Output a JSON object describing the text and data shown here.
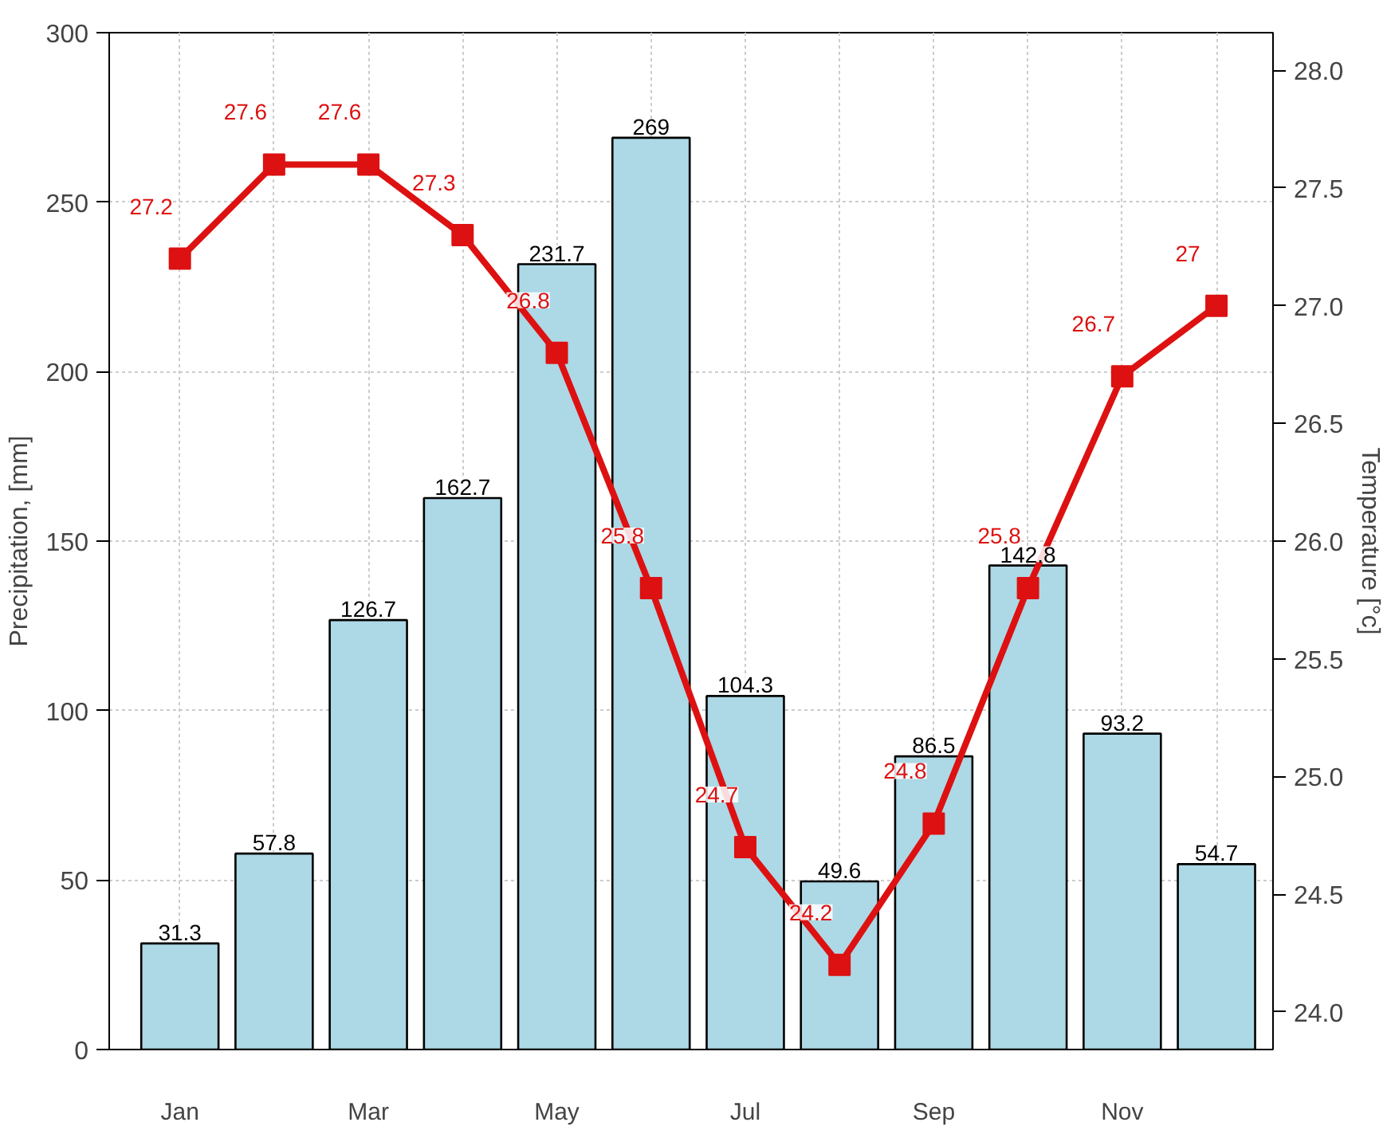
{
  "chart_data": {
    "type": "bar",
    "ylabel": "Precipitation, [mm]",
    "y2label": "Temperature [°c]",
    "categories": [
      "Jan",
      null,
      "Mar",
      null,
      "May",
      null,
      "Jul",
      null,
      "Sep",
      null,
      "Nov",
      null
    ],
    "series": [
      {
        "type": "bar",
        "color": "#add8e6",
        "values": [
          31.3,
          57.8,
          126.7,
          162.7,
          231.7,
          269,
          104.3,
          49.6,
          86.5,
          142.8,
          93.2,
          54.7
        ]
      },
      {
        "type": "line",
        "axis": "y2",
        "color": "#dd1111",
        "marker": "square",
        "line_style": "solid",
        "values": [
          27.2,
          27.6,
          27.6,
          27.3,
          26.8,
          25.8,
          24.7,
          24.2,
          24.8,
          25.8,
          26.7,
          27
        ]
      }
    ],
    "ylim": [
      0,
      300
    ],
    "yticks": [
      0,
      50,
      100,
      150,
      200,
      250,
      300
    ],
    "y2lim": [
      23.84,
      28.16
    ],
    "y2ticks": [
      {
        "value": 24,
        "label": "24.0"
      },
      {
        "value": 24.5,
        "label": "24.5"
      },
      {
        "value": 25,
        "label": "25.0"
      },
      {
        "value": 25.5,
        "label": "25.5"
      },
      {
        "value": 26,
        "label": "26.0"
      },
      {
        "value": 26.5,
        "label": "26.5"
      },
      {
        "value": 27,
        "label": "27.0"
      },
      {
        "value": 27.5,
        "label": "27.5"
      },
      {
        "value": 28,
        "label": "28.0"
      }
    ],
    "grid": true,
    "data_labels": true
  }
}
